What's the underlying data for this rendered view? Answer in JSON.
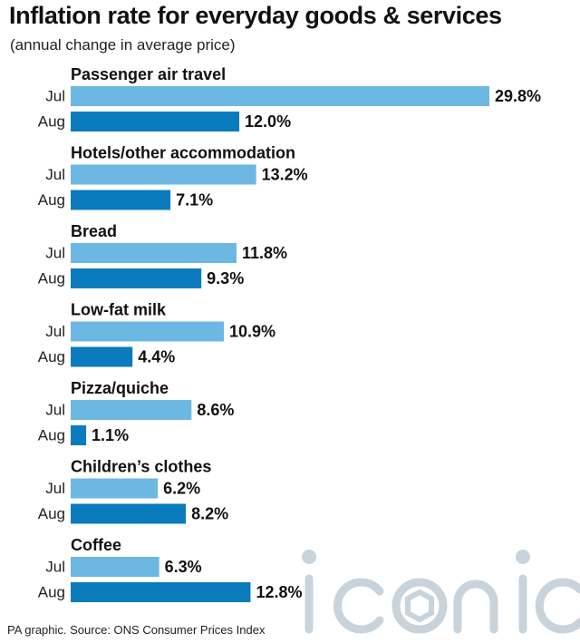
{
  "header": {
    "title": "Inflation rate for everyday goods & services",
    "subtitle": "(annual change in average price)"
  },
  "footer": {
    "source": "PA graphic. Source: ONS Consumer Prices Index"
  },
  "watermark": {
    "text": "iconic",
    "color": "#c9d3dc"
  },
  "colors": {
    "jul": "#6cb8e3",
    "aug": "#0a7bbd"
  },
  "chart_data": {
    "type": "bar",
    "orientation": "horizontal",
    "title": "Inflation rate for everyday goods & services",
    "subtitle": "(annual change in average price)",
    "value_suffix": "%",
    "series": [
      {
        "name": "Jul",
        "values": [
          29.8,
          13.2,
          11.8,
          10.9,
          8.6,
          6.2,
          6.3
        ]
      },
      {
        "name": "Aug",
        "values": [
          12.0,
          7.1,
          9.3,
          4.4,
          1.1,
          8.2,
          12.8
        ]
      }
    ],
    "categories": [
      "Passenger air travel",
      "Hotels/other accommodation",
      "Bread",
      "Low-fat milk",
      "Pizza/quiche",
      "Children’s clothes",
      "Coffee"
    ],
    "xlim": [
      0,
      29.8
    ],
    "grid": false,
    "legend": "none"
  }
}
